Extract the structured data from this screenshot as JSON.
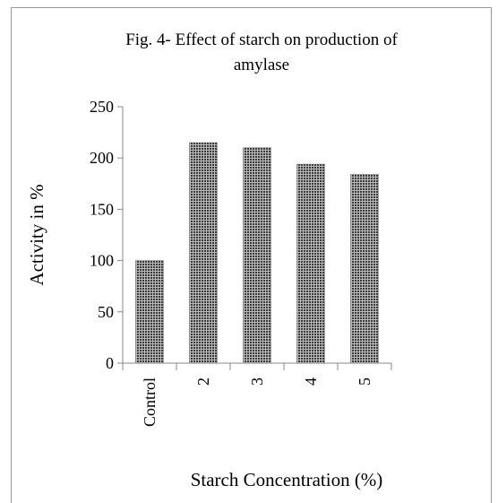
{
  "chart_data": {
    "type": "bar",
    "title": [
      "Fig. 4- Effect of starch on production of",
      "amylase"
    ],
    "y_label": "Activity in %",
    "x_label": "Starch Concentration (%)",
    "categories": [
      "Control",
      "2",
      "3",
      "4",
      "5"
    ],
    "values": [
      100,
      215,
      210,
      194,
      184
    ],
    "color": "#3a3a3a",
    "ylim": [
      0,
      250
    ],
    "yticks": [
      0,
      50,
      100,
      150,
      200,
      250
    ],
    "grid": false
  }
}
